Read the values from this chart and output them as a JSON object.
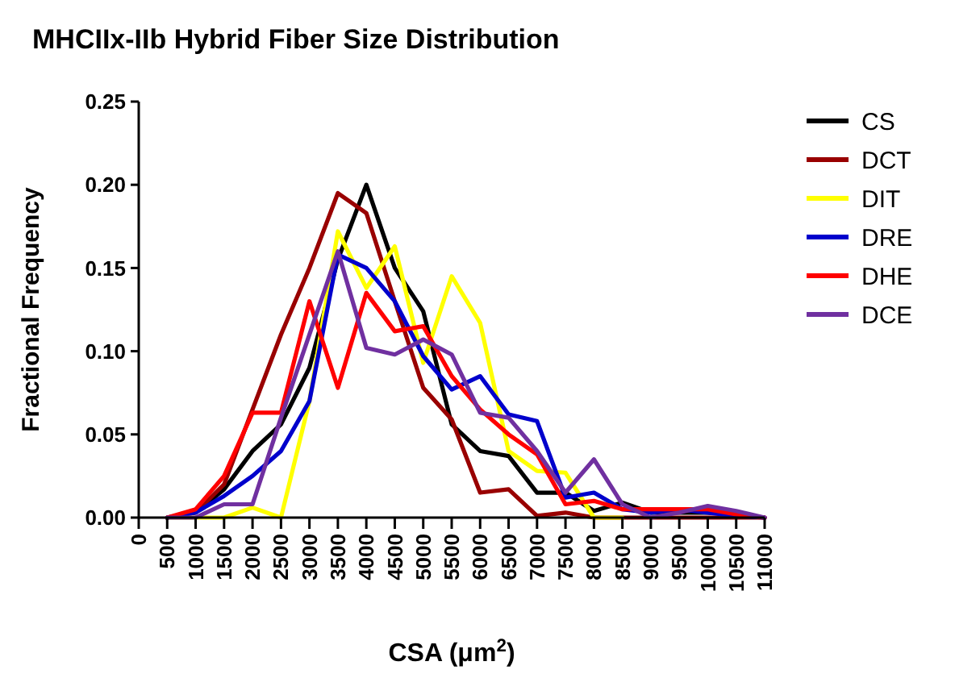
{
  "chart_data": {
    "type": "line",
    "title": "MHCIIx-IIb Hybrid Fiber Size Distribution",
    "xlabel": "CSA (μm$^{2}$)",
    "ylabel": "Fractional  Frequency",
    "x": [
      500,
      1000,
      1500,
      2000,
      2500,
      3000,
      3500,
      4000,
      4500,
      5000,
      5500,
      6000,
      6500,
      7000,
      7500,
      8000,
      8500,
      9000,
      9500,
      10000,
      10500,
      11000
    ],
    "series": [
      {
        "name": "CS",
        "color": "#000000",
        "values": [
          0,
          0.003,
          0.017,
          0.04,
          0.056,
          0.09,
          0.155,
          0.2,
          0.15,
          0.124,
          0.056,
          0.04,
          0.037,
          0.015,
          0.015,
          0.004,
          0.009,
          0.003,
          0.003,
          0.003,
          0.002,
          0
        ]
      },
      {
        "name": "DCT",
        "color": "#990000",
        "values": [
          0,
          0.003,
          0.02,
          0.065,
          0.11,
          0.15,
          0.195,
          0.183,
          0.13,
          0.078,
          0.059,
          0.015,
          0.017,
          0.001,
          0.003,
          0,
          0,
          0,
          0,
          0,
          0,
          0
        ]
      },
      {
        "name": "DIT",
        "color": "#ffff00",
        "values": [
          0,
          0,
          0,
          0.006,
          0,
          0.07,
          0.172,
          0.138,
          0.163,
          0.093,
          0.145,
          0.117,
          0.04,
          0.028,
          0.027,
          0,
          0,
          null,
          null,
          null,
          null,
          null
        ]
      },
      {
        "name": "DRE",
        "color": "#0000cc",
        "values": [
          0,
          0.003,
          0.013,
          0.025,
          0.04,
          0.07,
          0.158,
          0.15,
          0.13,
          0.097,
          0.077,
          0.085,
          0.062,
          0.058,
          0.012,
          0.015,
          0.005,
          0.003,
          0.005,
          0.003,
          0.001,
          0
        ]
      },
      {
        "name": "DHE",
        "color": "#ff0000",
        "values": [
          0,
          0.005,
          0.025,
          0.063,
          0.063,
          0.13,
          0.078,
          0.135,
          0.112,
          0.115,
          0.085,
          0.065,
          0.05,
          0.038,
          0.008,
          0.01,
          0.005,
          0.005,
          0.005,
          0.005,
          0.002,
          0
        ]
      },
      {
        "name": "DCE",
        "color": "#7030a0",
        "values": [
          0,
          0,
          0.008,
          0.008,
          0.06,
          0.11,
          0.16,
          0.102,
          0.098,
          0.107,
          0.098,
          0.063,
          0.06,
          0.04,
          0.015,
          0.035,
          0.008,
          0,
          0.003,
          0.007,
          0.004,
          0
        ]
      }
    ],
    "xlim": [
      0,
      11000
    ],
    "xticks": [
      0,
      500,
      1000,
      1500,
      2000,
      2500,
      3000,
      3500,
      4000,
      4500,
      5000,
      5500,
      6000,
      6500,
      7000,
      7500,
      8000,
      8500,
      9000,
      9500,
      10000,
      10500,
      11000
    ],
    "ylim": [
      0,
      0.25
    ],
    "yticks": [
      {
        "value": 0,
        "label": "0.00"
      },
      {
        "value": 0.05,
        "label": "0.05"
      },
      {
        "value": 0.1,
        "label": "0.10"
      },
      {
        "value": 0.15,
        "label": "0.15"
      },
      {
        "value": 0.2,
        "label": "0.20"
      },
      {
        "value": 0.25,
        "label": "0.25"
      }
    ],
    "legend": "right",
    "marker": "none",
    "line_style": "solid",
    "grid": false
  }
}
